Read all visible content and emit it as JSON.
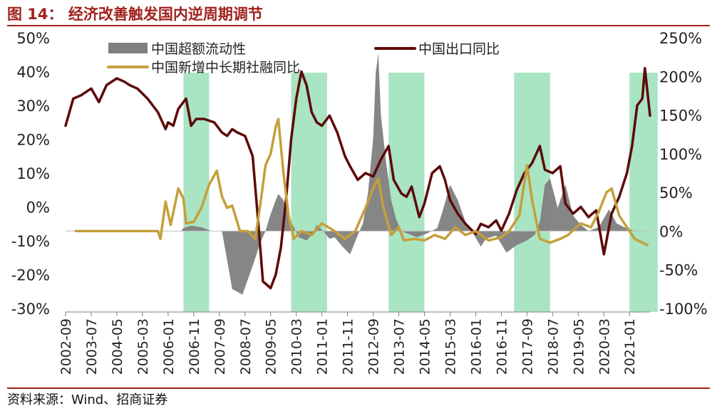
{
  "figure": {
    "title": "图 14：  经济改善触发国内逆周期调节",
    "source": "资料来源：Wind、招商证券"
  },
  "colors": {
    "title_red": "#a0221e",
    "export_line": "#5c0a0a",
    "tsf_line": "#c4a03a",
    "m1m2_area": "#7f7f7f",
    "shade": "#a9e4c3"
  },
  "chart_data": {
    "type": "line",
    "x_tick_labels": [
      "2002-09",
      "2003-07",
      "2004-05",
      "2005-03",
      "2006-01",
      "2006-11",
      "2007-09",
      "2008-07",
      "2009-05",
      "2010-03",
      "2011-01",
      "2011-11",
      "2012-09",
      "2013-07",
      "2014-05",
      "2015-03",
      "2016-01",
      "2016-11",
      "2017-09",
      "2018-07",
      "2019-05",
      "2020-03",
      "2021-01"
    ],
    "x_range": [
      "2002-09",
      "2021-09"
    ],
    "y_left": {
      "ticks": [
        "50%",
        "40%",
        "30%",
        "20%",
        "10%",
        "0%",
        "-10%",
        "-20%",
        "-30%"
      ],
      "range": [
        -30,
        50
      ]
    },
    "y_right": {
      "ticks": [
        "250%",
        "200%",
        "150%",
        "100%",
        "50%",
        "0%",
        "-50%",
        "-100%"
      ],
      "range": [
        -100,
        250
      ]
    },
    "shaded_periods": [
      [
        "2006-07",
        "2007-05"
      ],
      [
        "2010-01",
        "2011-03"
      ],
      [
        "2013-03",
        "2014-05"
      ],
      [
        "2017-04",
        "2018-06"
      ],
      [
        "2021-01",
        "2021-12"
      ]
    ],
    "series": [
      {
        "name": "中国超额流动性",
        "kind": "area",
        "axis": "right",
        "points": [
          [
            "2002-09",
            0
          ],
          [
            "2006-06",
            0
          ],
          [
            "2006-07",
            4
          ],
          [
            "2006-10",
            7
          ],
          [
            "2007-02",
            5
          ],
          [
            "2007-06",
            0
          ],
          [
            "2007-10",
            0
          ],
          [
            "2008-02",
            -75
          ],
          [
            "2008-06",
            -82
          ],
          [
            "2008-10",
            -45
          ],
          [
            "2009-01",
            -15
          ],
          [
            "2009-03",
            0
          ],
          [
            "2009-05",
            22
          ],
          [
            "2009-07",
            40
          ],
          [
            "2009-08",
            48
          ],
          [
            "2009-10",
            40
          ],
          [
            "2009-12",
            18
          ],
          [
            "2010-02",
            5
          ],
          [
            "2010-04",
            -8
          ],
          [
            "2010-07",
            -12
          ],
          [
            "2010-09",
            -5
          ],
          [
            "2010-11",
            8
          ],
          [
            "2011-01",
            2
          ],
          [
            "2011-04",
            -10
          ],
          [
            "2011-06",
            -8
          ],
          [
            "2011-09",
            -20
          ],
          [
            "2011-12",
            -30
          ],
          [
            "2012-03",
            -5
          ],
          [
            "2012-05",
            10
          ],
          [
            "2012-07",
            50
          ],
          [
            "2012-09",
            120
          ],
          [
            "2012-10",
            205
          ],
          [
            "2012-11",
            230
          ],
          [
            "2012-12",
            150
          ],
          [
            "2013-02",
            90
          ],
          [
            "2013-04",
            40
          ],
          [
            "2013-06",
            15
          ],
          [
            "2013-08",
            0
          ],
          [
            "2014-02",
            -8
          ],
          [
            "2014-06",
            -3
          ],
          [
            "2014-10",
            4
          ],
          [
            "2014-12",
            25
          ],
          [
            "2015-03",
            60
          ],
          [
            "2015-06",
            40
          ],
          [
            "2015-09",
            12
          ],
          [
            "2015-12",
            -3
          ],
          [
            "2016-03",
            -20
          ],
          [
            "2016-05",
            -10
          ],
          [
            "2016-09",
            -6
          ],
          [
            "2017-01",
            -28
          ],
          [
            "2017-05",
            -18
          ],
          [
            "2017-09",
            -12
          ],
          [
            "2017-12",
            -5
          ],
          [
            "2018-02",
            12
          ],
          [
            "2018-04",
            60
          ],
          [
            "2018-06",
            68
          ],
          [
            "2018-09",
            30
          ],
          [
            "2018-12",
            60
          ],
          [
            "2019-03",
            20
          ],
          [
            "2019-06",
            8
          ],
          [
            "2019-09",
            0
          ],
          [
            "2020-01",
            5
          ],
          [
            "2020-05",
            28
          ],
          [
            "2020-08",
            10
          ],
          [
            "2020-11",
            5
          ],
          [
            "2021-03",
            0
          ],
          [
            "2021-08",
            0
          ]
        ]
      },
      {
        "name": "中国出口同比",
        "kind": "line",
        "axis": "left",
        "points": [
          [
            "2002-09",
            24
          ],
          [
            "2002-12",
            32
          ],
          [
            "2003-03",
            33
          ],
          [
            "2003-07",
            35
          ],
          [
            "2003-10",
            31
          ],
          [
            "2004-01",
            36
          ],
          [
            "2004-05",
            38
          ],
          [
            "2004-08",
            37
          ],
          [
            "2004-10",
            36
          ],
          [
            "2005-01",
            35
          ],
          [
            "2005-05",
            32
          ],
          [
            "2005-09",
            28
          ],
          [
            "2005-12",
            23
          ],
          [
            "2006-01",
            25
          ],
          [
            "2006-03",
            24
          ],
          [
            "2006-05",
            29
          ],
          [
            "2006-08",
            32
          ],
          [
            "2006-10",
            24
          ],
          [
            "2006-12",
            26
          ],
          [
            "2007-03",
            26
          ],
          [
            "2007-07",
            25
          ],
          [
            "2007-10",
            22
          ],
          [
            "2007-12",
            21
          ],
          [
            "2008-02",
            23
          ],
          [
            "2008-04",
            22
          ],
          [
            "2008-07",
            21
          ],
          [
            "2008-10",
            15
          ],
          [
            "2008-12",
            -3
          ],
          [
            "2009-02",
            -22
          ],
          [
            "2009-05",
            -24
          ],
          [
            "2009-07",
            -20
          ],
          [
            "2009-09",
            -12
          ],
          [
            "2009-11",
            2
          ],
          [
            "2010-01",
            20
          ],
          [
            "2010-03",
            32
          ],
          [
            "2010-05",
            40
          ],
          [
            "2010-07",
            36
          ],
          [
            "2010-09",
            28
          ],
          [
            "2010-11",
            25
          ],
          [
            "2011-01",
            24
          ],
          [
            "2011-04",
            27
          ],
          [
            "2011-07",
            22
          ],
          [
            "2011-10",
            15
          ],
          [
            "2011-12",
            12
          ],
          [
            "2012-03",
            8
          ],
          [
            "2012-06",
            10
          ],
          [
            "2012-09",
            9
          ],
          [
            "2012-12",
            14
          ],
          [
            "2013-03",
            18
          ],
          [
            "2013-05",
            8
          ],
          [
            "2013-08",
            4
          ],
          [
            "2013-10",
            3
          ],
          [
            "2013-12",
            6
          ],
          [
            "2014-03",
            -3
          ],
          [
            "2014-05",
            1
          ],
          [
            "2014-08",
            10
          ],
          [
            "2014-11",
            12
          ],
          [
            "2015-01",
            8
          ],
          [
            "2015-03",
            2
          ],
          [
            "2015-06",
            -2
          ],
          [
            "2015-09",
            -5
          ],
          [
            "2016-01",
            -8
          ],
          [
            "2016-03",
            -5
          ],
          [
            "2016-06",
            -6
          ],
          [
            "2016-09",
            -4
          ],
          [
            "2016-11",
            -7
          ],
          [
            "2017-02",
            -2
          ],
          [
            "2017-05",
            5
          ],
          [
            "2017-08",
            10
          ],
          [
            "2017-11",
            13
          ],
          [
            "2018-02",
            18
          ],
          [
            "2018-04",
            11
          ],
          [
            "2018-07",
            10
          ],
          [
            "2018-10",
            12
          ],
          [
            "2018-12",
            1
          ],
          [
            "2019-03",
            -2
          ],
          [
            "2019-06",
            0
          ],
          [
            "2019-09",
            -3
          ],
          [
            "2019-12",
            -1
          ],
          [
            "2020-03",
            -14
          ],
          [
            "2020-06",
            -2
          ],
          [
            "2020-09",
            3
          ],
          [
            "2020-12",
            10
          ],
          [
            "2021-02",
            18
          ],
          [
            "2021-04",
            30
          ],
          [
            "2021-06",
            32
          ],
          [
            "2021-07",
            41
          ],
          [
            "2021-09",
            27
          ]
        ]
      },
      {
        "name": "中国新增中长期社融同比",
        "kind": "line",
        "axis": "right",
        "points": [
          [
            "2003-01",
            0
          ],
          [
            "2005-09",
            0
          ],
          [
            "2005-10",
            -10
          ],
          [
            "2005-12",
            38
          ],
          [
            "2006-02",
            8
          ],
          [
            "2006-05",
            55
          ],
          [
            "2006-07",
            42
          ],
          [
            "2006-08",
            10
          ],
          [
            "2006-11",
            12
          ],
          [
            "2007-02",
            30
          ],
          [
            "2007-05",
            60
          ],
          [
            "2007-08",
            78
          ],
          [
            "2007-10",
            45
          ],
          [
            "2007-12",
            30
          ],
          [
            "2008-02",
            33
          ],
          [
            "2008-05",
            0
          ],
          [
            "2008-08",
            0
          ],
          [
            "2008-11",
            -10
          ],
          [
            "2009-01",
            35
          ],
          [
            "2009-03",
            85
          ],
          [
            "2009-05",
            100
          ],
          [
            "2009-07",
            135
          ],
          [
            "2009-08",
            145
          ],
          [
            "2009-10",
            75
          ],
          [
            "2009-12",
            20
          ],
          [
            "2010-02",
            -10
          ],
          [
            "2010-05",
            0
          ],
          [
            "2010-09",
            -5
          ],
          [
            "2011-01",
            10
          ],
          [
            "2011-06",
            0
          ],
          [
            "2011-10",
            -10
          ],
          [
            "2012-02",
            0
          ],
          [
            "2012-06",
            30
          ],
          [
            "2012-09",
            55
          ],
          [
            "2012-11",
            68
          ],
          [
            "2013-01",
            30
          ],
          [
            "2013-04",
            -5
          ],
          [
            "2013-07",
            5
          ],
          [
            "2013-09",
            -12
          ],
          [
            "2014-01",
            -10
          ],
          [
            "2014-05",
            -12
          ],
          [
            "2014-09",
            -5
          ],
          [
            "2015-01",
            -10
          ],
          [
            "2015-05",
            5
          ],
          [
            "2015-09",
            -5
          ],
          [
            "2016-01",
            0
          ],
          [
            "2016-06",
            -12
          ],
          [
            "2016-11",
            -8
          ],
          [
            "2017-02",
            0
          ],
          [
            "2017-06",
            20
          ],
          [
            "2017-09",
            85
          ],
          [
            "2017-11",
            40
          ],
          [
            "2018-02",
            -10
          ],
          [
            "2018-06",
            -15
          ],
          [
            "2018-10",
            -10
          ],
          [
            "2019-01",
            -5
          ],
          [
            "2019-06",
            10
          ],
          [
            "2019-10",
            5
          ],
          [
            "2020-01",
            25
          ],
          [
            "2020-04",
            50
          ],
          [
            "2020-06",
            55
          ],
          [
            "2020-09",
            20
          ],
          [
            "2020-12",
            5
          ],
          [
            "2021-03",
            -10
          ],
          [
            "2021-08",
            -18
          ]
        ]
      }
    ],
    "legend": [
      {
        "label": "中国超额流动性",
        "kind": "area"
      },
      {
        "label": "中国出口同比",
        "kind": "line"
      },
      {
        "label": "中国新增中长期社融同比",
        "kind": "line"
      }
    ]
  }
}
